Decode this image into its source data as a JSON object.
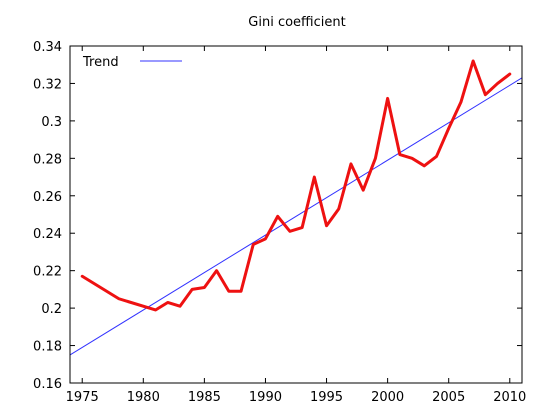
{
  "chart_data": {
    "type": "line",
    "title": "Gini coefficient",
    "xlabel": "",
    "ylabel": "",
    "xlim": [
      1974,
      2011
    ],
    "ylim": [
      0.16,
      0.34
    ],
    "xticks": [
      1975,
      1980,
      1985,
      1990,
      1995,
      2000,
      2005,
      2010
    ],
    "yticks": [
      0.16,
      0.18,
      0.2,
      0.22,
      0.24,
      0.26,
      0.28,
      0.3,
      0.32,
      0.34
    ],
    "ytick_labels": [
      "0.16",
      "0.18",
      "0.2",
      "0.22",
      "0.24",
      "0.26",
      "0.28",
      "0.3",
      "0.32",
      "0.34"
    ],
    "grid": false,
    "legend_position": "top-left",
    "series": [
      {
        "color": "#ee1111",
        "x": [
          1975,
          1978,
          1981,
          1982,
          1983,
          1984,
          1985,
          1986,
          1987,
          1988,
          1989,
          1990,
          1991,
          1992,
          1993,
          1994,
          1995,
          1996,
          1997,
          1998,
          1999,
          2000,
          2001,
          2002,
          2003,
          2004,
          2005,
          2006,
          2007,
          2008,
          2009,
          2010
        ],
        "values": [
          0.217,
          0.205,
          0.199,
          0.203,
          0.201,
          0.21,
          0.211,
          0.22,
          0.209,
          0.209,
          0.234,
          0.237,
          0.249,
          0.241,
          0.243,
          0.27,
          0.244,
          0.253,
          0.277,
          0.263,
          0.28,
          0.312,
          0.282,
          0.28,
          0.276,
          0.281,
          0.296,
          0.31,
          0.332,
          0.314,
          0.32,
          0.325
        ]
      },
      {
        "name": "Trend",
        "color": "#3333ff",
        "x": [
          1974,
          2011
        ],
        "values": [
          0.175,
          0.323
        ]
      }
    ]
  }
}
